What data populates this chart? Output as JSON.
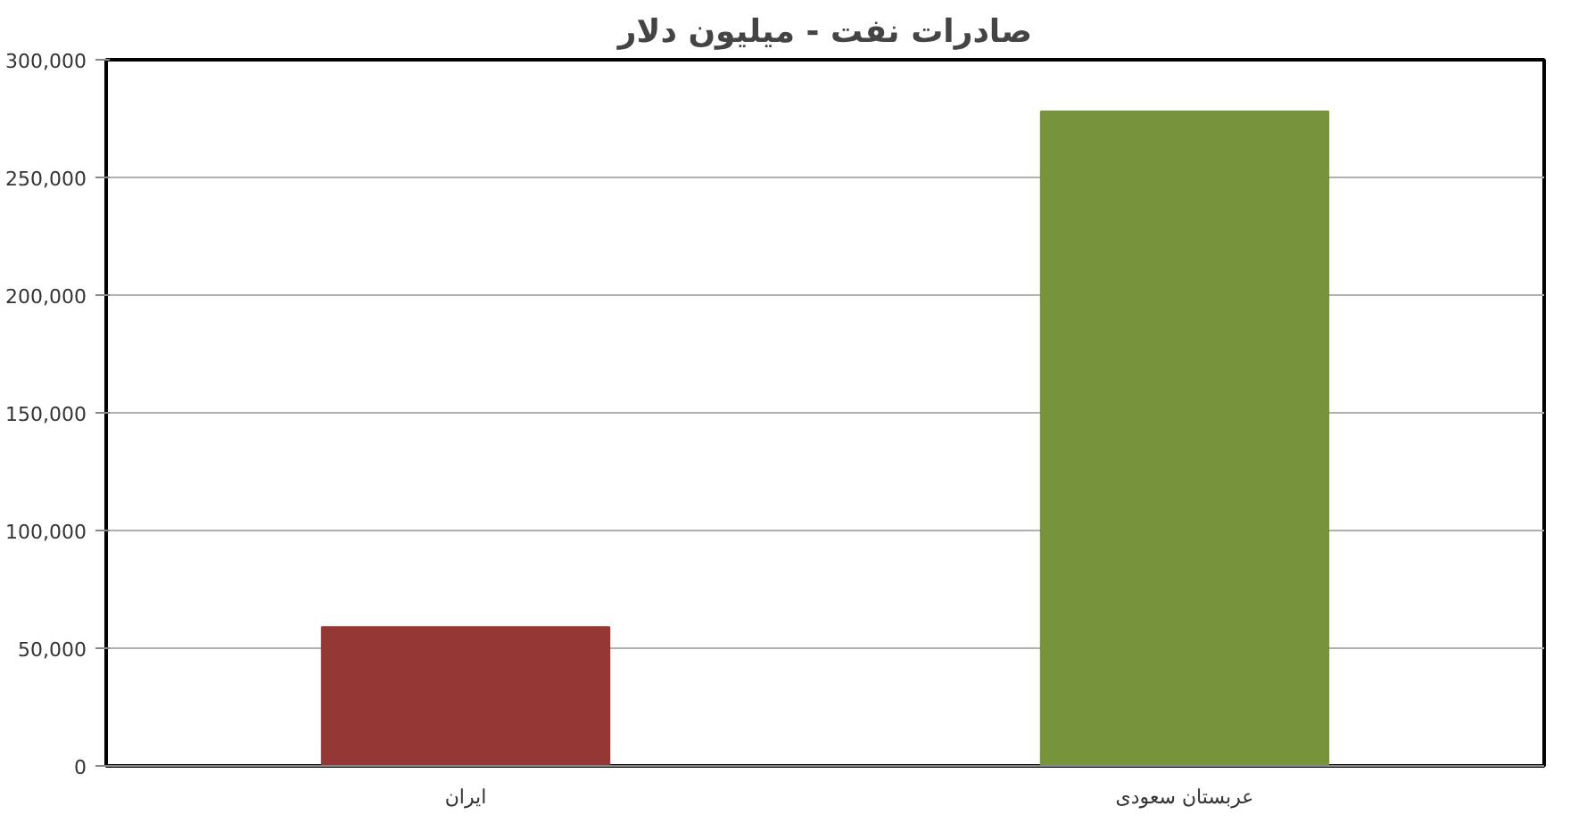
{
  "chart_data": {
    "type": "bar",
    "title": "صادرات نفت - میلیون دلار",
    "categories": [
      "ایران",
      "عربستان سعودی"
    ],
    "values": [
      59000,
      278000
    ],
    "colors": [
      "#953735",
      "#77933c"
    ],
    "ylim": [
      0,
      300000
    ],
    "yticks": [
      {
        "value": 0,
        "label": "0"
      },
      {
        "value": 50000,
        "label": "50,000"
      },
      {
        "value": 100000,
        "label": "100,000"
      },
      {
        "value": 150000,
        "label": "150,000"
      },
      {
        "value": 200000,
        "label": "200,000"
      },
      {
        "value": 250000,
        "label": "250,000"
      },
      {
        "value": 300000,
        "label": "300,000"
      }
    ],
    "grid": "y"
  }
}
